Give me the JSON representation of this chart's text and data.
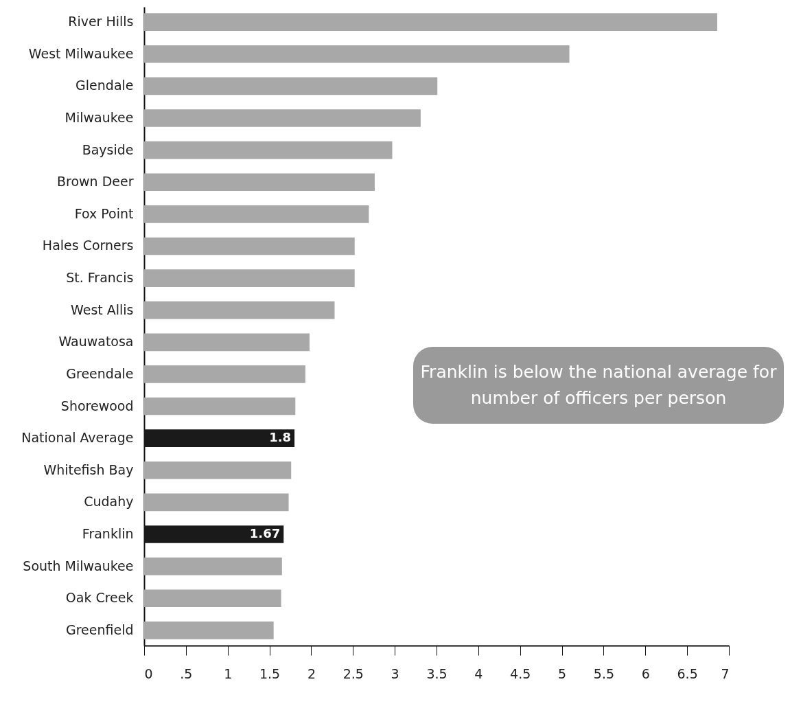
{
  "chart_data": {
    "type": "bar",
    "orientation": "horizontal",
    "categories": [
      "River Hills",
      "West Milwaukee",
      "Glendale",
      "Milwaukee",
      "Bayside",
      "Brown Deer",
      "Fox Point",
      "Hales Corners",
      "St. Francis",
      "West Allis",
      "Wauwatosa",
      "Greendale",
      "Shorewood",
      "National Average",
      "Whitefish Bay",
      "Cudahy",
      "Franklin",
      "South Milwaukee",
      "Oak Creek",
      "Greenfield"
    ],
    "values": [
      6.86,
      5.09,
      3.51,
      3.31,
      2.97,
      2.76,
      2.69,
      2.52,
      2.52,
      2.28,
      1.98,
      1.93,
      1.81,
      1.8,
      1.76,
      1.73,
      1.67,
      1.65,
      1.64,
      1.55
    ],
    "colors": [
      "#a8a8a8",
      "#a8a8a8",
      "#a8a8a8",
      "#a8a8a8",
      "#a8a8a8",
      "#a8a8a8",
      "#a8a8a8",
      "#a8a8a8",
      "#a8a8a8",
      "#a8a8a8",
      "#a8a8a8",
      "#a8a8a8",
      "#a8a8a8",
      "#1a1a1a",
      "#a8a8a8",
      "#a8a8a8",
      "#1a1a1a",
      "#a8a8a8",
      "#a8a8a8",
      "#a8a8a8"
    ],
    "value_labels": [
      null,
      null,
      null,
      null,
      null,
      null,
      null,
      null,
      null,
      null,
      null,
      null,
      null,
      "1.8",
      null,
      null,
      "1.67",
      null,
      null,
      null
    ],
    "xlim": [
      0,
      7
    ],
    "xticks": [
      0,
      {
        "value": 0.5,
        "label": ".5"
      },
      1,
      1.5,
      2,
      2.5,
      3,
      3.5,
      4,
      4.5,
      5,
      5.5,
      6,
      6.5,
      7
    ],
    "annotations": [
      "Franklin is below the national average for number of officers per person"
    ],
    "grid": false
  }
}
